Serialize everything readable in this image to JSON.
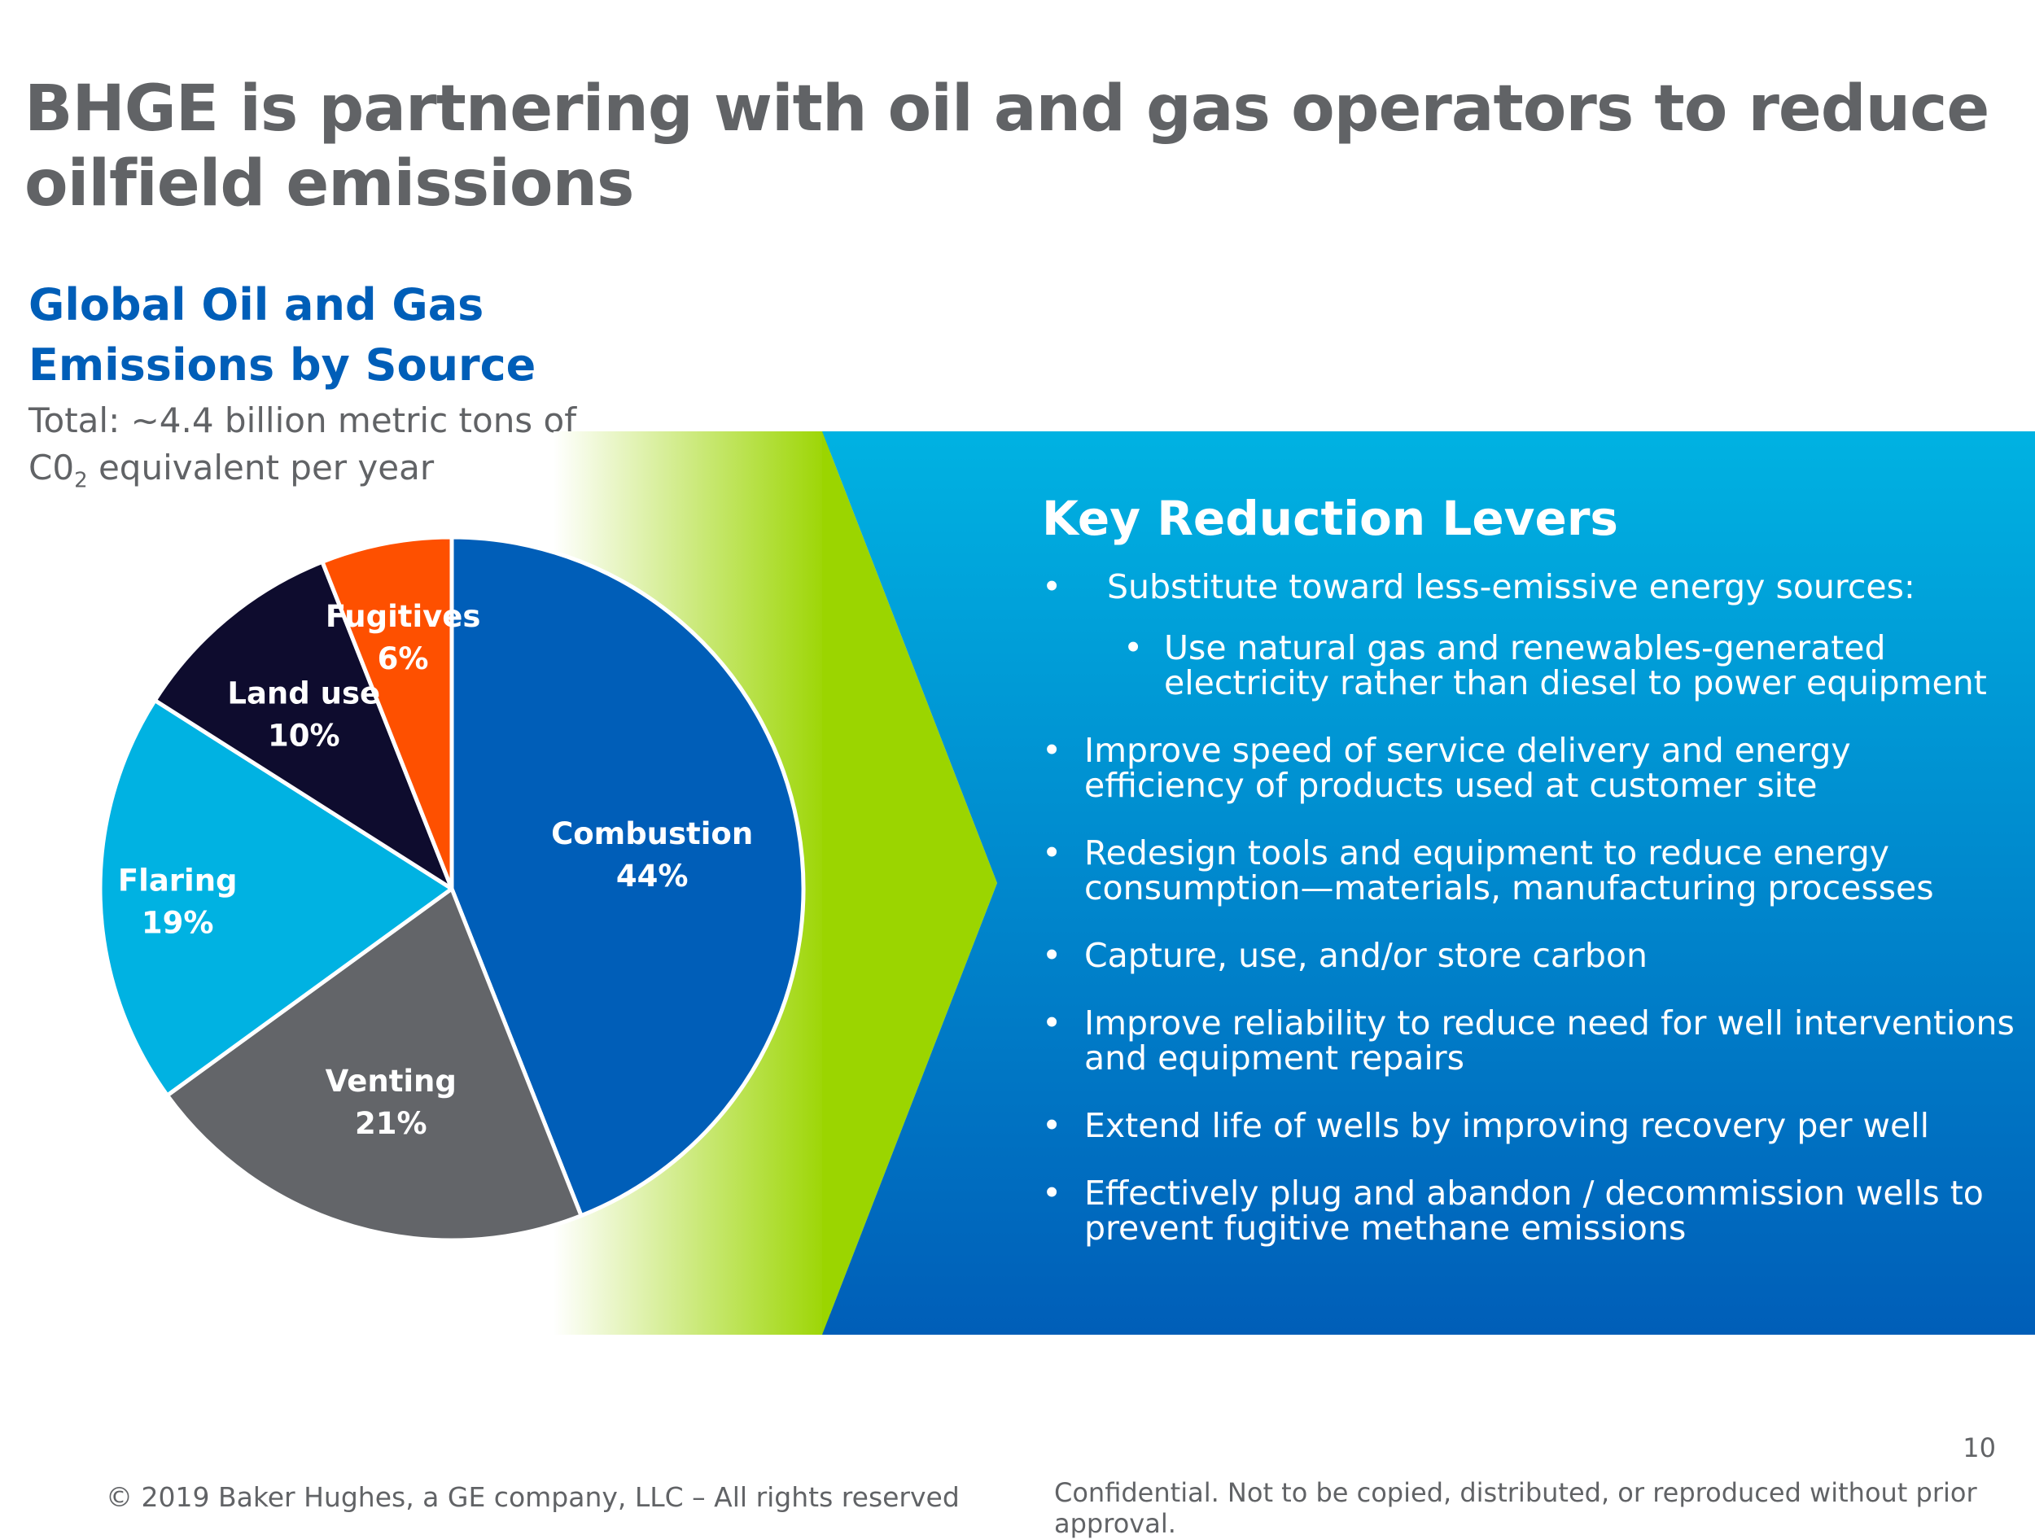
{
  "slide_title": "BHGE is partnering with oil and gas operators to reduce oilfield emissions",
  "chart_data": {
    "type": "pie",
    "title": "Global Oil and Gas Emissions by Source",
    "subtitle_before": "Total: ~4.4 billion metric tons of C0",
    "subtitle_sub": "2",
    "subtitle_after": " equivalent per year",
    "slices": [
      {
        "label": "Combustion",
        "value": 44,
        "display": "44%",
        "color": "#005eb8"
      },
      {
        "label": "Venting",
        "value": 21,
        "display": "21%",
        "color": "#636569"
      },
      {
        "label": "Flaring",
        "value": 19,
        "display": "19%",
        "color": "#00b2e2"
      },
      {
        "label": "Land use",
        "value": 10,
        "display": "10%",
        "color": "#0e0c2e"
      },
      {
        "label": "Fugitives",
        "value": 6,
        "display": "6%",
        "color": "#fe5000"
      }
    ]
  },
  "panel": {
    "title": "Key Reduction Levers",
    "levers": [
      {
        "text": "Substitute toward less-emissive energy sources:",
        "level": 1,
        "first": true
      },
      {
        "text": "Use natural gas and renewables-generated electricity rather than diesel to power equipment",
        "level": 2
      },
      {
        "text": "Improve speed of service delivery and energy efficiency of products used at customer site",
        "level": 1
      },
      {
        "text": "Redesign tools and equipment to reduce energy consumption—materials, manufacturing processes",
        "level": 1
      },
      {
        "text": "Capture, use, and/or store carbon",
        "level": 1
      },
      {
        "text": "Improve reliability to reduce need for well interventions and equipment repairs",
        "level": 1
      },
      {
        "text": "Extend life of wells by improving recovery per well",
        "level": 1
      },
      {
        "text": "Effectively plug and abandon / decommission wells to prevent fugitive methane emissions",
        "level": 1
      }
    ],
    "bullet_glyph": "•"
  },
  "colors": {
    "title_gray": "#616366",
    "chart_title_blue": "#005eb8",
    "lime": "#9bd500",
    "panel_top": "#00b2e2",
    "panel_bottom": "#005eb8"
  },
  "footer": {
    "copyright": "© 2019 Baker Hughes, a GE company, LLC – All rights reserved",
    "confidential": "Confidential. Not to be copied, distributed, or reproduced without prior approval.",
    "page_number": "10"
  }
}
